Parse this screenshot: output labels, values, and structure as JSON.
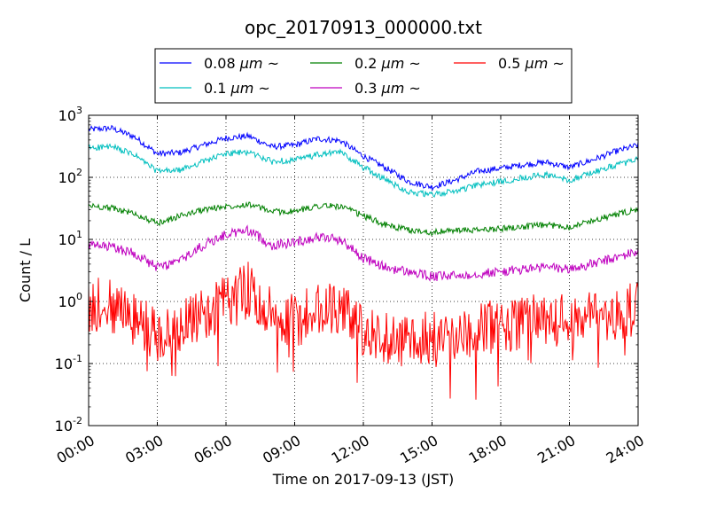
{
  "chart_data": {
    "type": "line",
    "title": "opc_20170913_000000.txt",
    "xlabel": "Time on 2017-09-13 (JST)",
    "ylabel": "Count / L",
    "yscale": "log",
    "ylim": [
      0.01,
      1000
    ],
    "xlim": [
      "00:00",
      "24:00"
    ],
    "x_ticks": [
      "00:00",
      "03:00",
      "06:00",
      "09:00",
      "12:00",
      "15:00",
      "18:00",
      "21:00",
      "24:00"
    ],
    "y_ticks": [
      {
        "base": "10",
        "exp": "-2"
      },
      {
        "base": "10",
        "exp": "-1"
      },
      {
        "base": "10",
        "exp": "0"
      },
      {
        "base": "10",
        "exp": "1"
      },
      {
        "base": "10",
        "exp": "2"
      },
      {
        "base": "10",
        "exp": "3"
      }
    ],
    "grid": true,
    "legend_position": "top-center, above plot",
    "legend_unit_symbol": "μm",
    "legend_suffix": "~",
    "x_hours": [
      0,
      1,
      2,
      3,
      4,
      5,
      6,
      7,
      8,
      9,
      10,
      11,
      12,
      13,
      14,
      15,
      16,
      17,
      18,
      19,
      20,
      21,
      22,
      23,
      24
    ],
    "series": [
      {
        "name": "0.08",
        "color": "#0000ff",
        "values": [
          590,
          620,
          450,
          240,
          250,
          330,
          430,
          460,
          310,
          330,
          420,
          390,
          220,
          140,
          85,
          70,
          90,
          125,
          140,
          160,
          175,
          145,
          190,
          260,
          330
        ]
      },
      {
        "name": "0.1",
        "color": "#00bfbf",
        "values": [
          300,
          310,
          230,
          125,
          130,
          180,
          240,
          255,
          180,
          190,
          230,
          255,
          145,
          90,
          58,
          52,
          60,
          75,
          85,
          100,
          110,
          90,
          120,
          155,
          195
        ]
      },
      {
        "name": "0.2",
        "color": "#008000",
        "values": [
          35,
          32,
          26,
          18,
          24,
          30,
          34,
          37,
          28,
          28,
          35,
          34,
          24,
          17,
          14,
          13,
          14,
          14,
          15,
          16,
          17,
          16,
          20,
          25,
          30
        ]
      },
      {
        "name": "0.3",
        "color": "#bf00bf",
        "values": [
          8,
          7.5,
          6,
          3.5,
          4.5,
          8,
          12,
          14,
          8,
          9,
          11,
          10,
          5,
          3.5,
          3,
          2.5,
          2.6,
          2.8,
          3,
          3.3,
          3.6,
          3.3,
          4,
          5,
          6.5
        ]
      },
      {
        "name": "0.5",
        "color": "#ff0000",
        "values": [
          0.9,
          0.8,
          0.5,
          0.3,
          0.35,
          0.6,
          1.0,
          1.6,
          0.6,
          0.5,
          0.7,
          0.9,
          0.3,
          0.25,
          0.25,
          0.28,
          0.3,
          0.35,
          0.4,
          0.45,
          0.5,
          0.45,
          0.55,
          0.65,
          0.8
        ]
      }
    ]
  }
}
